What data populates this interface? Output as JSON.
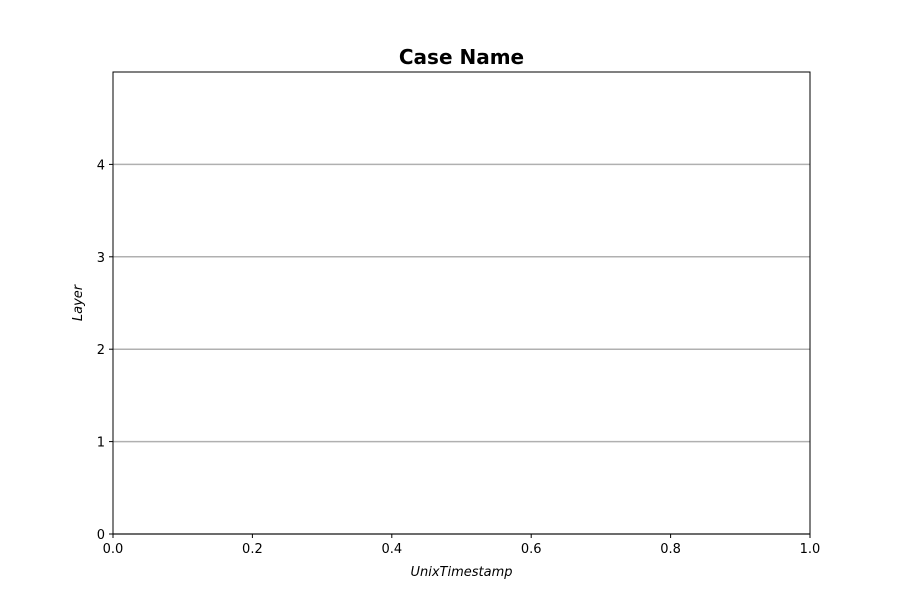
{
  "chart_data": {
    "type": "line",
    "title": "Case Name",
    "xlabel": "UnixTimestamp",
    "ylabel": "Layer",
    "xlim": [
      0.0,
      1.0
    ],
    "ylim": [
      0,
      5
    ],
    "x_ticks": [
      0.0,
      0.2,
      0.4,
      0.6,
      0.8,
      1.0
    ],
    "x_tick_labels": [
      "0.0",
      "0.2",
      "0.4",
      "0.6",
      "0.8",
      "1.0"
    ],
    "y_ticks": [
      0,
      1,
      2,
      3,
      4
    ],
    "y_tick_labels": [
      "0",
      "1",
      "2",
      "3",
      "4"
    ],
    "grid": "horizontal",
    "grid_color": "#b0b0b0",
    "series": []
  }
}
